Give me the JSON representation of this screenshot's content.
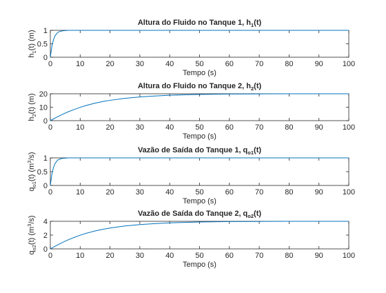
{
  "chart_data": [
    {
      "type": "line",
      "title": "Altura do Fluido no Tanque 1, h",
      "title_sub": "1",
      "title_suffix": "(t)",
      "xlabel": "Tempo (s)",
      "ylabel": "h",
      "ylabel_sub": "1",
      "ylabel_suffix": "(t) (m)",
      "xlim": [
        0,
        100
      ],
      "ylim": [
        0,
        1
      ],
      "xticks": [
        0,
        10,
        20,
        30,
        40,
        50,
        60,
        70,
        80,
        90,
        100
      ],
      "yticks": [
        0,
        0.5,
        1
      ],
      "ytick_labels": [
        "0",
        "0.5",
        "1"
      ],
      "grid": false,
      "series": [
        {
          "color": "#0072bd",
          "x": [
            0,
            0.5,
            1,
            1.5,
            2,
            2.5,
            3,
            4,
            5,
            6,
            7,
            8,
            10,
            15,
            20,
            30,
            50,
            100
          ],
          "values": [
            0,
            0.39,
            0.63,
            0.78,
            0.86,
            0.92,
            0.95,
            0.98,
            0.99,
            1.0,
            1.0,
            1.0,
            1.0,
            1.0,
            1.0,
            1.0,
            1.0,
            1.0
          ]
        }
      ]
    },
    {
      "type": "line",
      "title": "Altura do Fluido no Tanque 2, h",
      "title_sub": "2",
      "title_suffix": "(t)",
      "xlabel": "Tempo (s)",
      "ylabel": "h",
      "ylabel_sub": "2",
      "ylabel_suffix": "(t) (m)",
      "xlim": [
        0,
        100
      ],
      "ylim": [
        0,
        20
      ],
      "xticks": [
        0,
        10,
        20,
        30,
        40,
        50,
        60,
        70,
        80,
        90,
        100
      ],
      "yticks": [
        0,
        10,
        20
      ],
      "ytick_labels": [
        "0",
        "10",
        "20"
      ],
      "grid": false,
      "series": [
        {
          "color": "#0072bd",
          "x": [
            0,
            2,
            4,
            6,
            8,
            10,
            12,
            15,
            18,
            20,
            25,
            30,
            35,
            40,
            45,
            50,
            60,
            70,
            80,
            100
          ],
          "values": [
            0,
            2.4,
            4.6,
            6.6,
            8.3,
            9.9,
            11.3,
            13.0,
            14.4,
            15.1,
            16.6,
            17.6,
            18.3,
            18.9,
            19.2,
            19.5,
            19.8,
            19.9,
            20.0,
            20.0
          ]
        }
      ]
    },
    {
      "type": "line",
      "title": "Vazão de Saída do Tanque 1, q",
      "title_sub": "o1",
      "title_suffix": "(t)",
      "xlabel": "Tempo (s)",
      "ylabel": "q",
      "ylabel_sub": "o1",
      "ylabel_suffix": "(t) (m",
      "ylabel_sup": "3",
      "ylabel_end": "/s)",
      "xlim": [
        0,
        100
      ],
      "ylim": [
        0,
        1
      ],
      "xticks": [
        0,
        10,
        20,
        30,
        40,
        50,
        60,
        70,
        80,
        90,
        100
      ],
      "yticks": [
        0,
        0.5,
        1
      ],
      "ytick_labels": [
        "0",
        "0.5",
        "1"
      ],
      "grid": false,
      "series": [
        {
          "color": "#0072bd",
          "x": [
            0,
            0.5,
            1,
            1.5,
            2,
            2.5,
            3,
            4,
            5,
            6,
            7,
            8,
            10,
            15,
            20,
            30,
            50,
            100
          ],
          "values": [
            0,
            0.39,
            0.63,
            0.78,
            0.86,
            0.92,
            0.95,
            0.98,
            0.99,
            1.0,
            1.0,
            1.0,
            1.0,
            1.0,
            1.0,
            1.0,
            1.0,
            1.0
          ]
        }
      ]
    },
    {
      "type": "line",
      "title": "Vazão de Saída do Tanque 2, q",
      "title_sub": "o2",
      "title_suffix": "(t)",
      "xlabel": "Tempo (s)",
      "ylabel": "q",
      "ylabel_sub": "o2",
      "ylabel_suffix": "(t) (m",
      "ylabel_sup": "3",
      "ylabel_end": "/s)",
      "xlim": [
        0,
        100
      ],
      "ylim": [
        0,
        4
      ],
      "xticks": [
        0,
        10,
        20,
        30,
        40,
        50,
        60,
        70,
        80,
        90,
        100
      ],
      "yticks": [
        0,
        2,
        4
      ],
      "ytick_labels": [
        "0",
        "2",
        "4"
      ],
      "grid": false,
      "series": [
        {
          "color": "#0072bd",
          "x": [
            0,
            2,
            4,
            6,
            8,
            10,
            12,
            15,
            18,
            20,
            25,
            30,
            35,
            40,
            45,
            50,
            60,
            70,
            80,
            100
          ],
          "values": [
            0,
            0.48,
            0.92,
            1.32,
            1.66,
            1.98,
            2.26,
            2.6,
            2.88,
            3.02,
            3.32,
            3.52,
            3.66,
            3.78,
            3.84,
            3.9,
            3.96,
            3.98,
            4.0,
            4.0
          ]
        }
      ]
    }
  ]
}
